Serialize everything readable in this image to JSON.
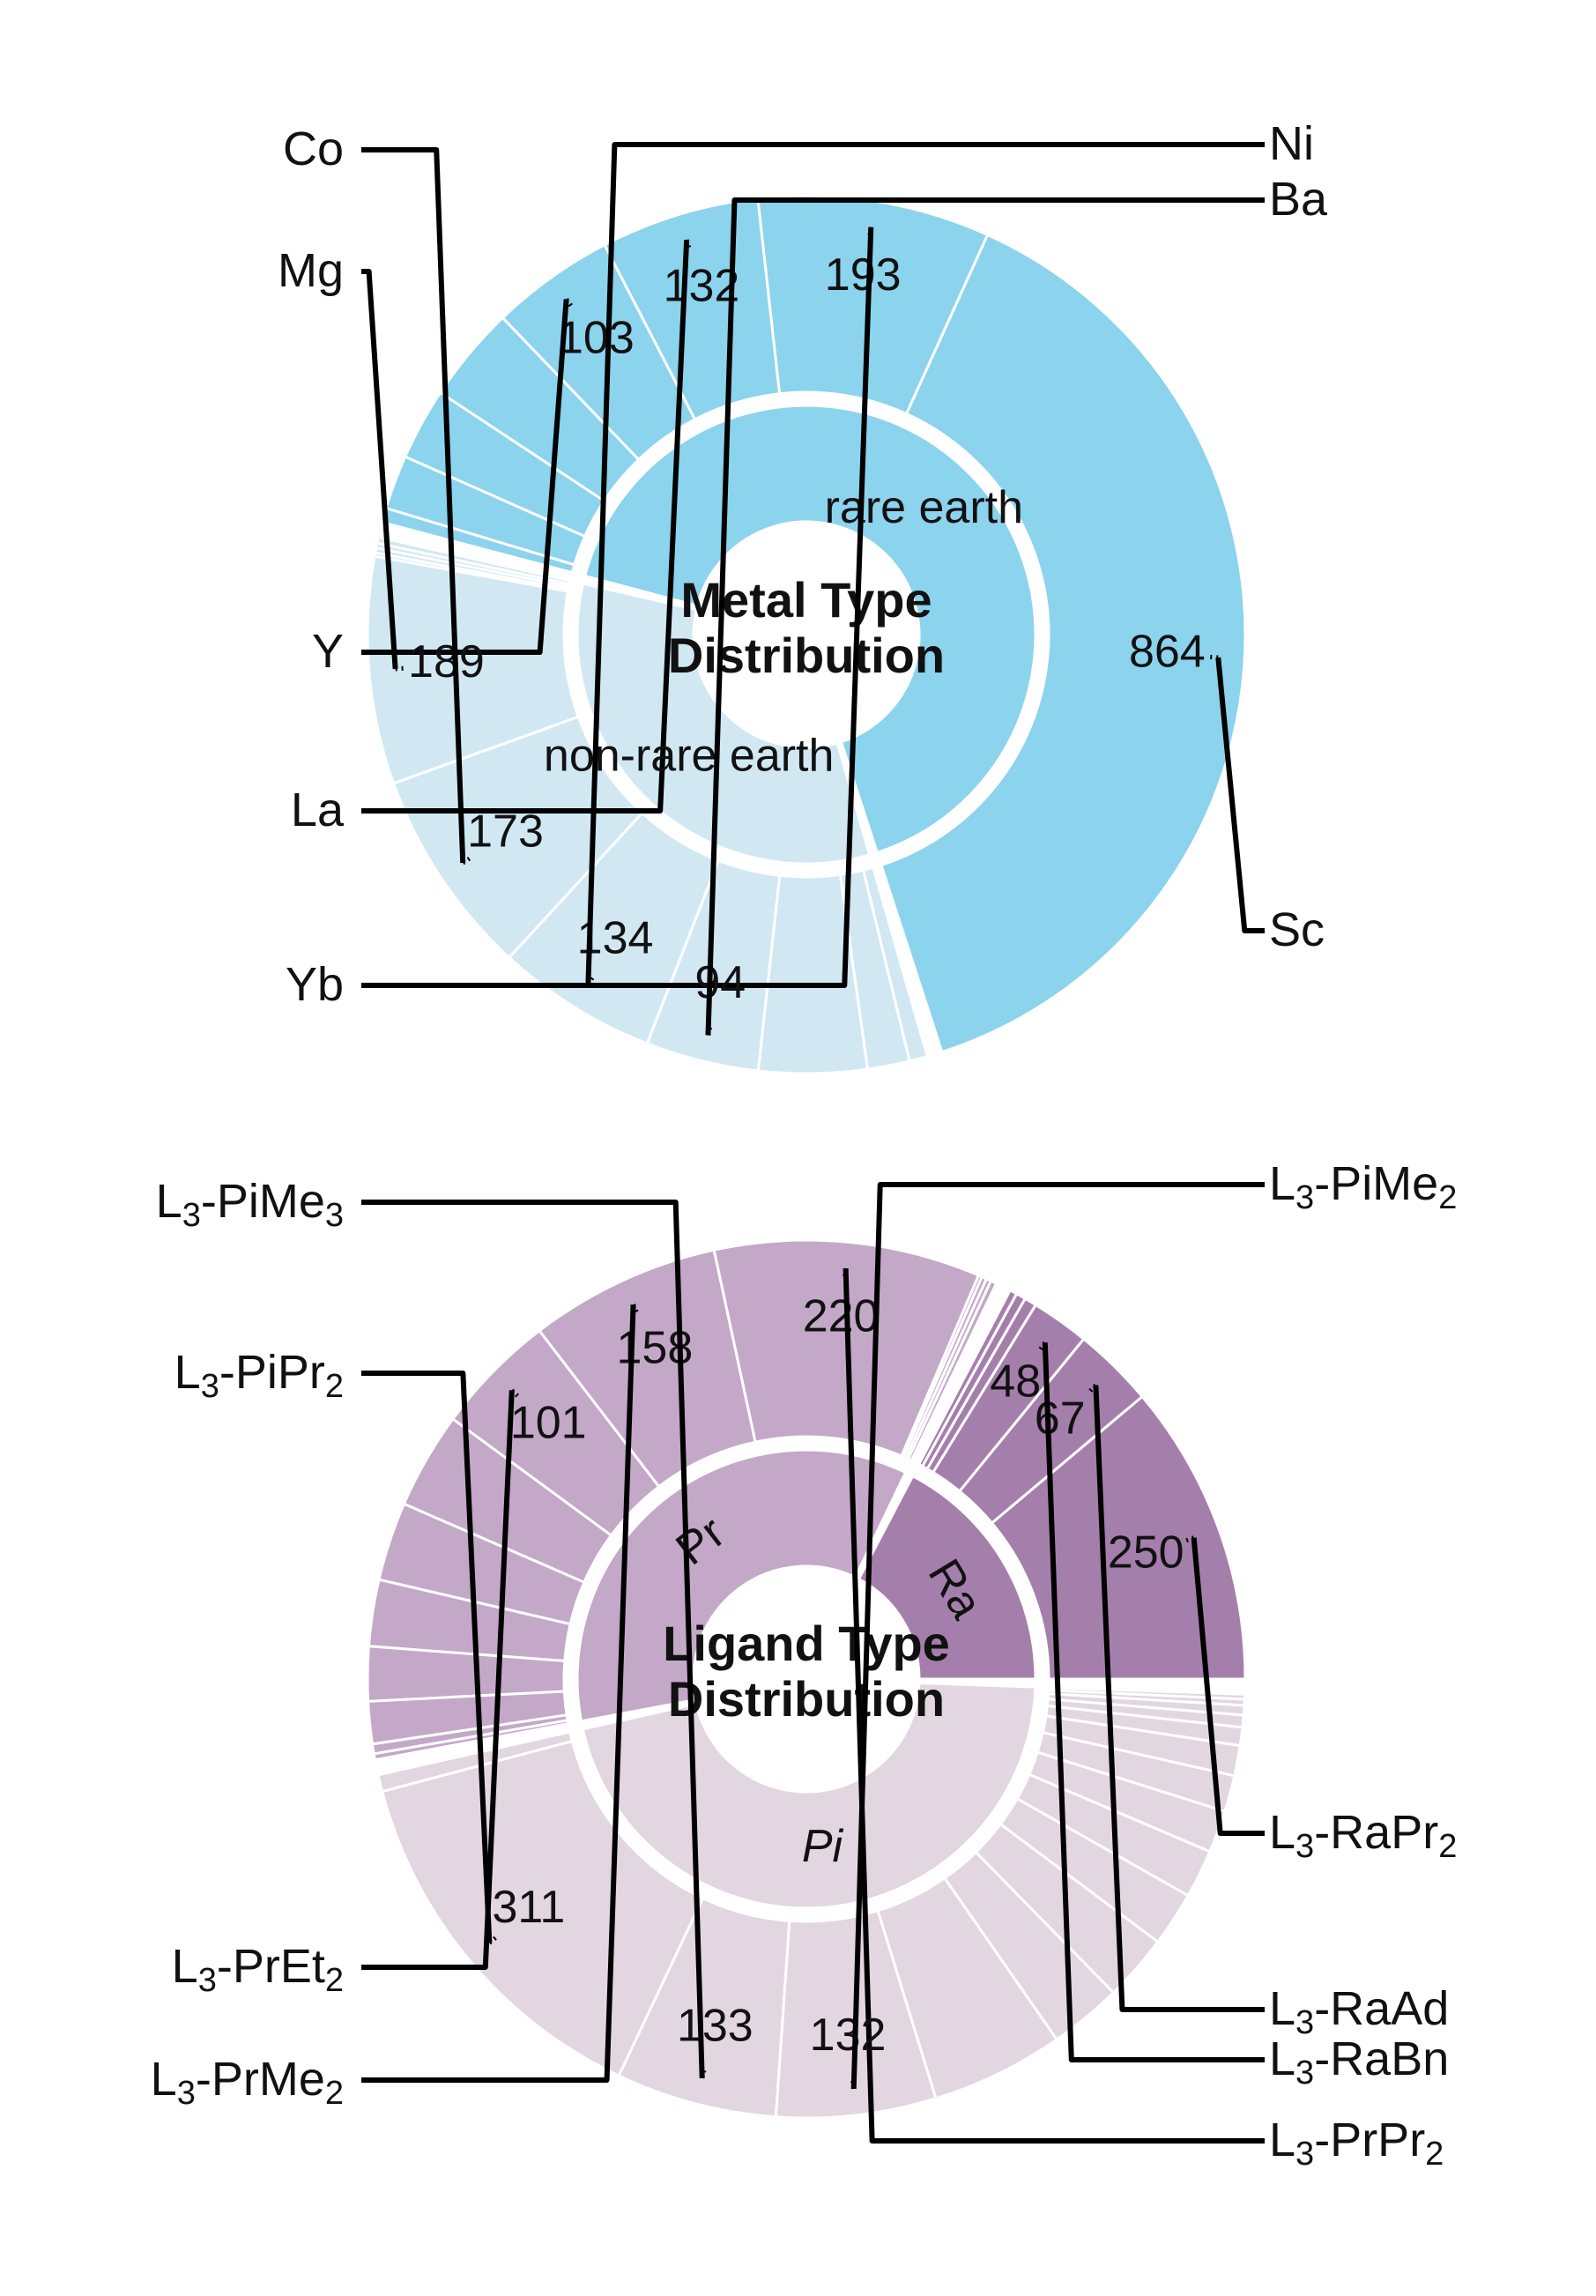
{
  "chart_data": [
    {
      "type": "sunburst",
      "title": "Metal Type Distribution",
      "title_lines": [
        "Metal Type",
        "Distribution"
      ],
      "palette": {
        "non_rare_earth": "#d1e8f3",
        "rare_earth": "#8cd3ee"
      },
      "groups": [
        {
          "label": "rare earth",
          "color": "#8cd3ee",
          "children": [
            {
              "name": "Sc",
              "value": 864,
              "value_text": "864",
              "labeled": true
            },
            {
              "name": "Yb",
              "value": 193,
              "value_text": "193",
              "labeled": true
            },
            {
              "name": "La",
              "value": 132,
              "value_text": "132",
              "labeled": true
            },
            {
              "name": "Y",
              "value": 103,
              "value_text": "103",
              "labeled": true
            },
            {
              "value": 80,
              "labeled": false
            },
            {
              "value": 60,
              "labeled": false
            },
            {
              "value": 45,
              "labeled": false
            },
            {
              "value": 12,
              "labeled": false
            }
          ]
        },
        {
          "label": "non-rare earth",
          "color": "#d1e8f3",
          "children": [
            {
              "value": 5,
              "labeled": false
            },
            {
              "value": 4,
              "labeled": false
            },
            {
              "value": 4,
              "labeled": false
            },
            {
              "value": 3,
              "labeled": false
            },
            {
              "name": "Mg",
              "value": 189,
              "value_text": "189",
              "labeled": true
            },
            {
              "name": "Co",
              "value": 173,
              "value_text": "173",
              "labeled": true
            },
            {
              "name": "Ni",
              "value": 134,
              "value_text": "134",
              "labeled": true
            },
            {
              "name": "Ba",
              "value": 94,
              "value_text": "94",
              "labeled": true
            },
            {
              "value": 90,
              "labeled": false
            },
            {
              "value": 35,
              "labeled": false
            },
            {
              "value": 15,
              "labeled": false
            }
          ]
        }
      ]
    },
    {
      "type": "sunburst",
      "title": "Ligand Type Distribution",
      "title_lines": [
        "Ligand Type",
        "Distribution"
      ],
      "palette": {
        "Pi": "#e2d6e1",
        "Pr": "#c3a8c8",
        "Ra": "#a57fab"
      },
      "groups": [
        {
          "label": "Ra",
          "color": "#a57fab",
          "children": [
            {
              "name": "L3-RaPr2",
              "value": 250,
              "value_text": "250",
              "labeled": true
            },
            {
              "name": "L3-RaAd",
              "value": 67,
              "value_text": "67",
              "labeled": true
            },
            {
              "name": "L3-RaBn",
              "value": 48,
              "value_text": "48",
              "labeled": true
            },
            {
              "value": 10,
              "labeled": false
            },
            {
              "value": 8,
              "labeled": false
            },
            {
              "value": 6,
              "labeled": false
            }
          ]
        },
        {
          "label": "Pr",
          "color": "#c3a8c8",
          "children": [
            {
              "value": 5,
              "labeled": false
            },
            {
              "value": 4,
              "labeled": false
            },
            {
              "value": 4,
              "labeled": false
            },
            {
              "value": 3,
              "labeled": false
            },
            {
              "name": "L3-PrPr2",
              "value": 220,
              "value_text": "220",
              "labeled": true
            },
            {
              "name": "L3-PrMe2",
              "value": 158,
              "value_text": "158",
              "labeled": true
            },
            {
              "name": "L3-PrEt2",
              "value": 101,
              "value_text": "101",
              "labeled": true
            },
            {
              "value": 80,
              "labeled": false
            },
            {
              "value": 65,
              "labeled": false
            },
            {
              "value": 55,
              "labeled": false
            },
            {
              "value": 45,
              "labeled": false
            },
            {
              "value": 35,
              "labeled": false
            },
            {
              "value": 8,
              "labeled": false
            },
            {
              "value": 5,
              "labeled": false
            }
          ]
        },
        {
          "label": "Pi",
          "color": "#e2d6e1",
          "children": [
            {
              "value": 14,
              "labeled": false
            },
            {
              "name": "L3-PiPr2",
              "value": 311,
              "value_text": "311",
              "labeled": true
            },
            {
              "name": "L3-PiMe3",
              "value": 133,
              "value_text": "133",
              "labeled": true
            },
            {
              "name": "L3-PiMe2",
              "value": 132,
              "value_text": "132",
              "labeled": true
            },
            {
              "value": 110,
              "labeled": false
            },
            {
              "value": 60,
              "labeled": false
            },
            {
              "value": 55,
              "labeled": false
            },
            {
              "value": 45,
              "labeled": false
            },
            {
              "value": 40,
              "labeled": false
            },
            {
              "value": 35,
              "labeled": false
            },
            {
              "value": 30,
              "labeled": false
            },
            {
              "value": 25,
              "labeled": false
            },
            {
              "value": 15,
              "labeled": false
            },
            {
              "value": 10,
              "labeled": false
            },
            {
              "value": 8,
              "labeled": false
            },
            {
              "value": 5,
              "labeled": false
            },
            {
              "value": 4,
              "labeled": false
            }
          ]
        }
      ]
    }
  ]
}
